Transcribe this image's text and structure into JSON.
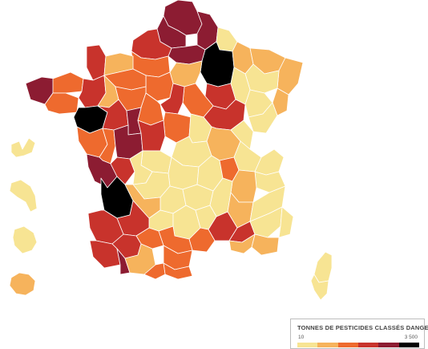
{
  "legend": {
    "title": "TONNES DE PESTICIDES CLASSÉS DANGEREUX",
    "min_label": "10",
    "max_label": "3 500",
    "scale": [
      "#f7e493",
      "#f6b35c",
      "#ee6a2e",
      "#c8332c",
      "#8c1c32",
      "#000000"
    ]
  },
  "colors": {
    "class1": "#f7e493",
    "class2": "#f6b35c",
    "class3": "#ee6a2e",
    "class4": "#c8332c",
    "class5": "#8c1c32",
    "class6": "#000000",
    "border": "#ffffff"
  }
}
